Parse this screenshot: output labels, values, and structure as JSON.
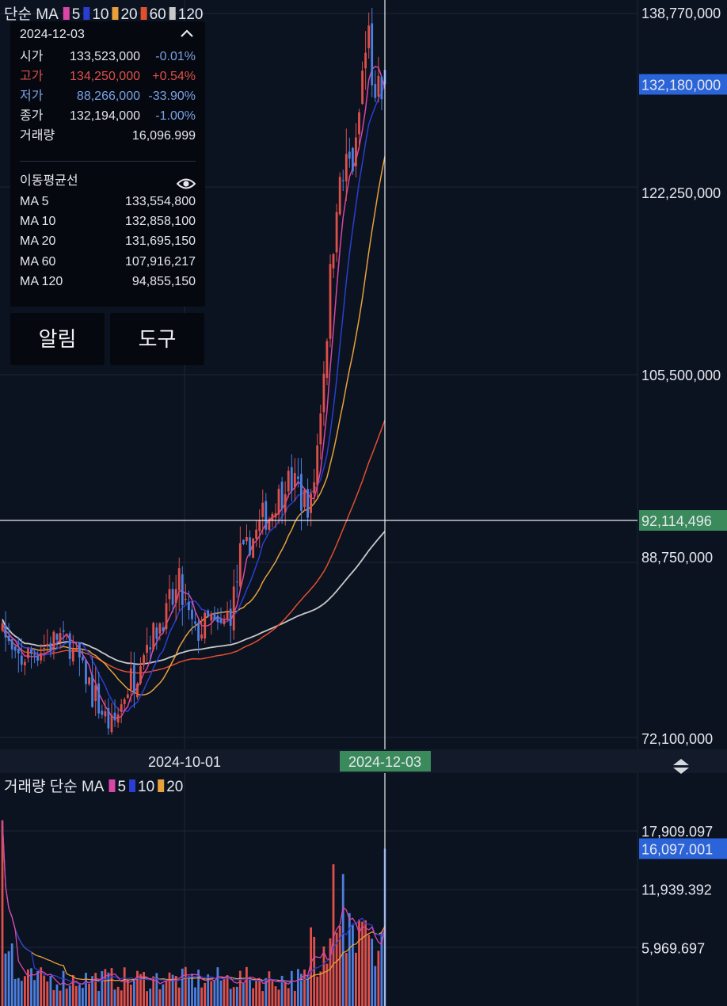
{
  "price_legend": {
    "label": "단순 MA",
    "ma": [
      "5",
      "10",
      "20",
      "60",
      "120"
    ]
  },
  "volume_legend": {
    "label": "거래량 단순 MA",
    "ma": [
      "5",
      "10",
      "20"
    ]
  },
  "info": {
    "date": "2024-12-03",
    "open": {
      "label": "시가",
      "value": "133,523,000",
      "pct": "-0.01%"
    },
    "high": {
      "label": "고가",
      "value": "134,250,000",
      "pct": "+0.54%"
    },
    "low": {
      "label": "저가",
      "value": "88,266,000",
      "pct": "-33.90%"
    },
    "close": {
      "label": "종가",
      "value": "132,194,000",
      "pct": "-1.00%"
    },
    "volume": {
      "label": "거래량",
      "value": "16,096.999"
    },
    "ma_title": "이동평균선",
    "ma": [
      {
        "label": "MA 5",
        "value": "133,554,800"
      },
      {
        "label": "MA 10",
        "value": "132,858,100"
      },
      {
        "label": "MA 20",
        "value": "131,695,150"
      },
      {
        "label": "MA 60",
        "value": "107,916,217"
      },
      {
        "label": "MA 120",
        "value": "94,855,150"
      }
    ]
  },
  "buttons": {
    "alert": "알림",
    "tools": "도구"
  },
  "colors": {
    "up": "#e0504a",
    "down": "#4c7fdf",
    "ma5": "#d946a8",
    "ma10": "#2a3fd0",
    "ma20": "#e8a13a",
    "ma60": "#e0502e",
    "ma120": "#c8c8c8",
    "current_tag": "#2a64d8",
    "cursor_tag": "#3a8a5c"
  },
  "chart_data": [
    {
      "type": "candlestick",
      "price_axis": {
        "ticks": [
          "138,770,000",
          "122,250,000",
          "105,500,000",
          "88,750,000",
          "72,100,000"
        ],
        "range": [
          72100000,
          138770000
        ]
      },
      "current_price": "132,180,000",
      "crosshair_price": "92,114,496",
      "x_axis": {
        "ticks": [
          "2024-10-01"
        ],
        "crosshair_date": "2024-12-03"
      },
      "ma_periods": [
        5,
        10,
        20,
        60,
        120
      ]
    },
    {
      "type": "bar",
      "name": "거래량",
      "axis": {
        "ticks": [
          "17,909.097",
          "11,939.392",
          "5,969.697"
        ],
        "range": [
          0,
          19000
        ]
      },
      "current_volume": "16,097.001"
    }
  ]
}
